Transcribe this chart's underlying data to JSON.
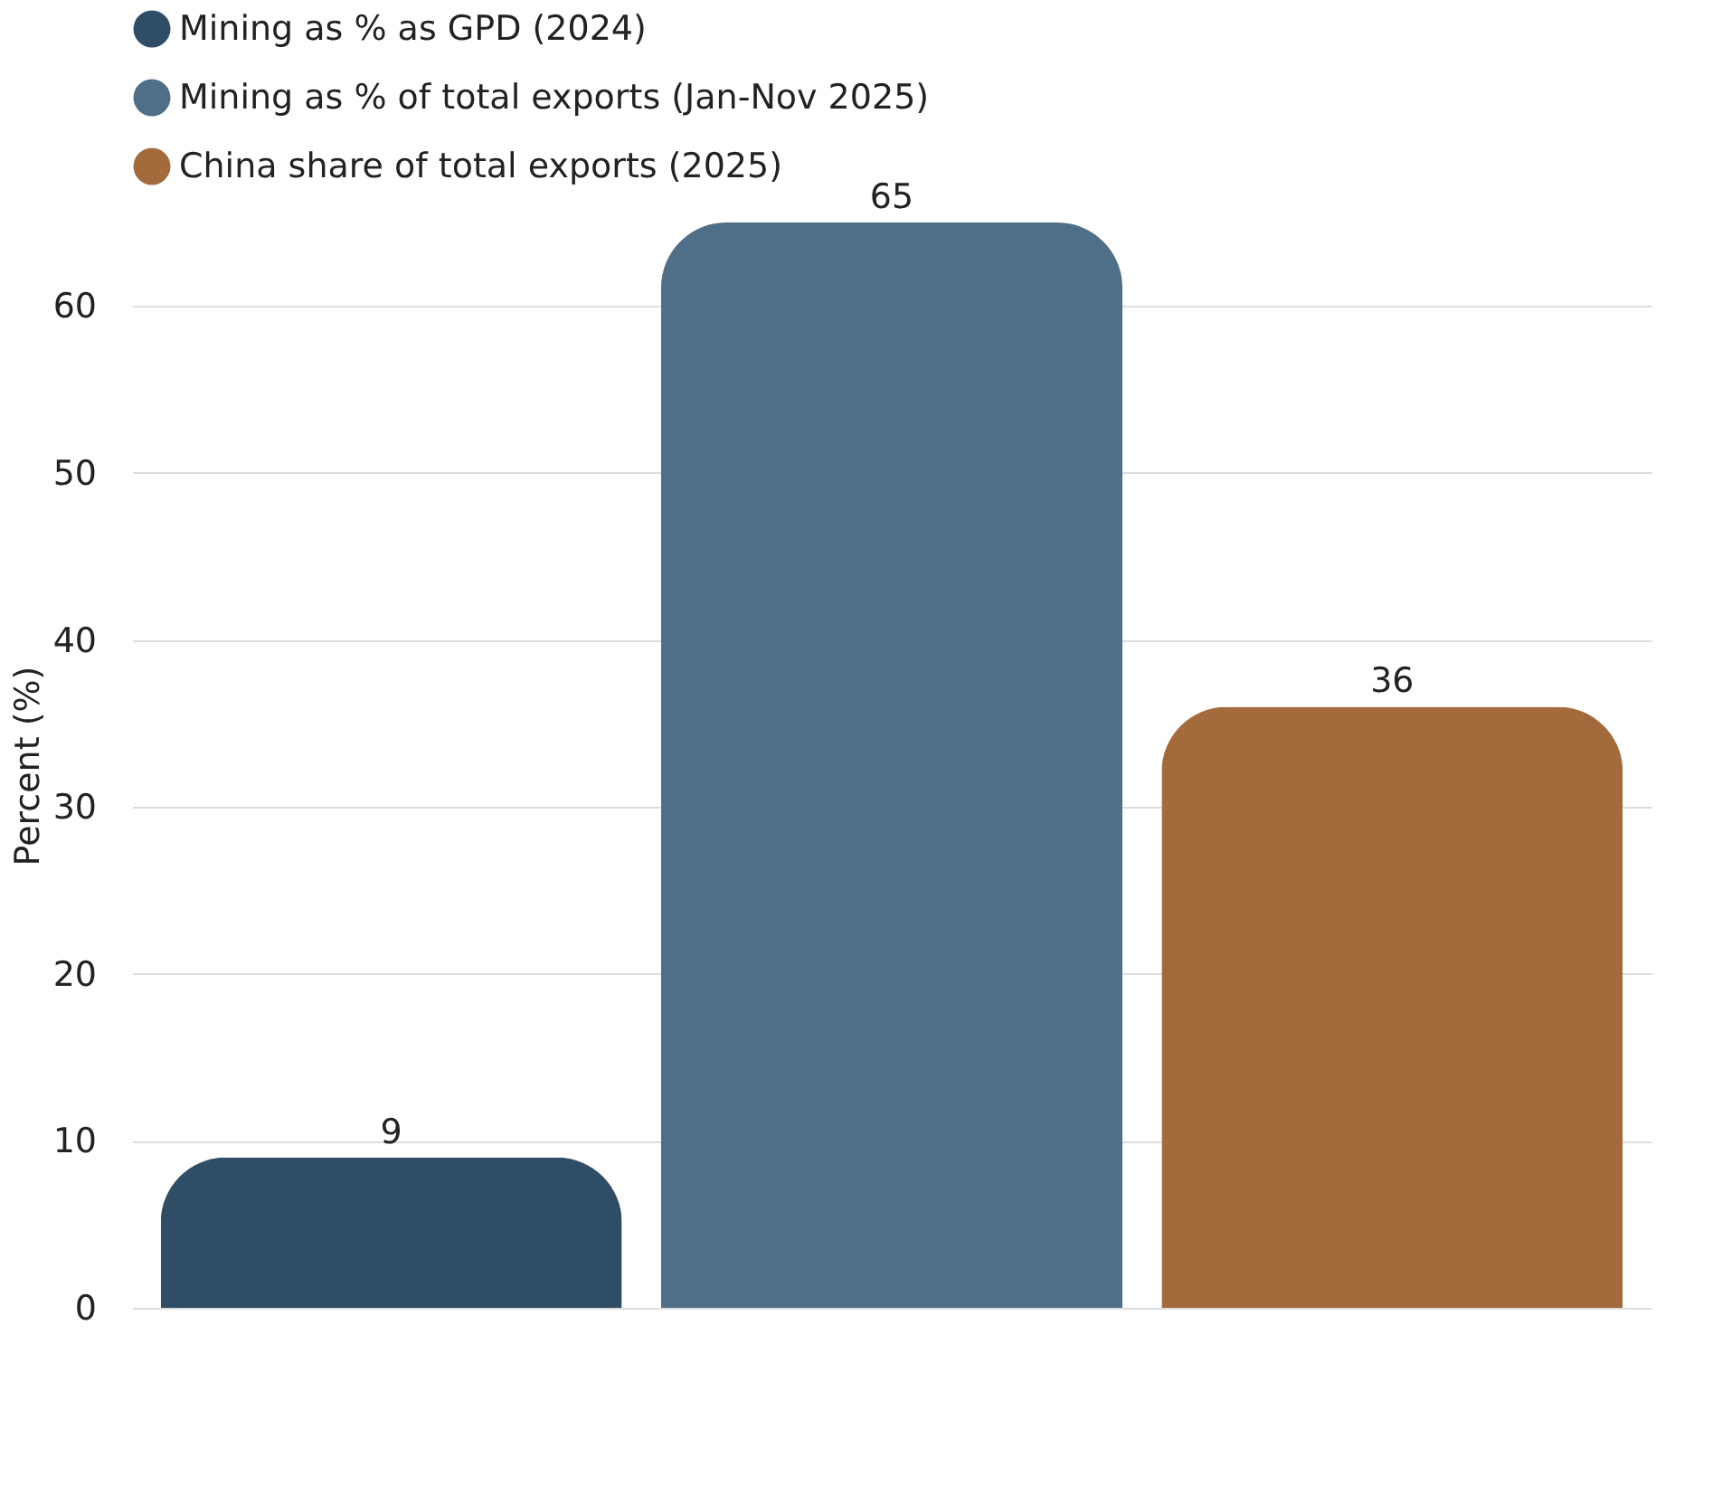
{
  "chart_data": {
    "type": "bar",
    "ylabel": "Percent (%)",
    "categories": [
      null,
      null,
      null
    ],
    "series": [
      {
        "name": "Mining as % as GPD (2024)",
        "color": "#304d66",
        "values": [
          9,
          null,
          null
        ]
      },
      {
        "name": "Mining as % of total exports (Jan-Nov 2025)",
        "color": "#4f6f88",
        "values": [
          null,
          65,
          null
        ]
      },
      {
        "name": "China share of total exports (2025)",
        "color": "#a36a3b",
        "values": [
          null,
          null,
          36
        ]
      }
    ],
    "ylim": [
      0,
      65
    ],
    "yticks": [
      0,
      10,
      20,
      30,
      40,
      50,
      60
    ],
    "grid": "y",
    "legend": "top",
    "data_labels": true
  }
}
